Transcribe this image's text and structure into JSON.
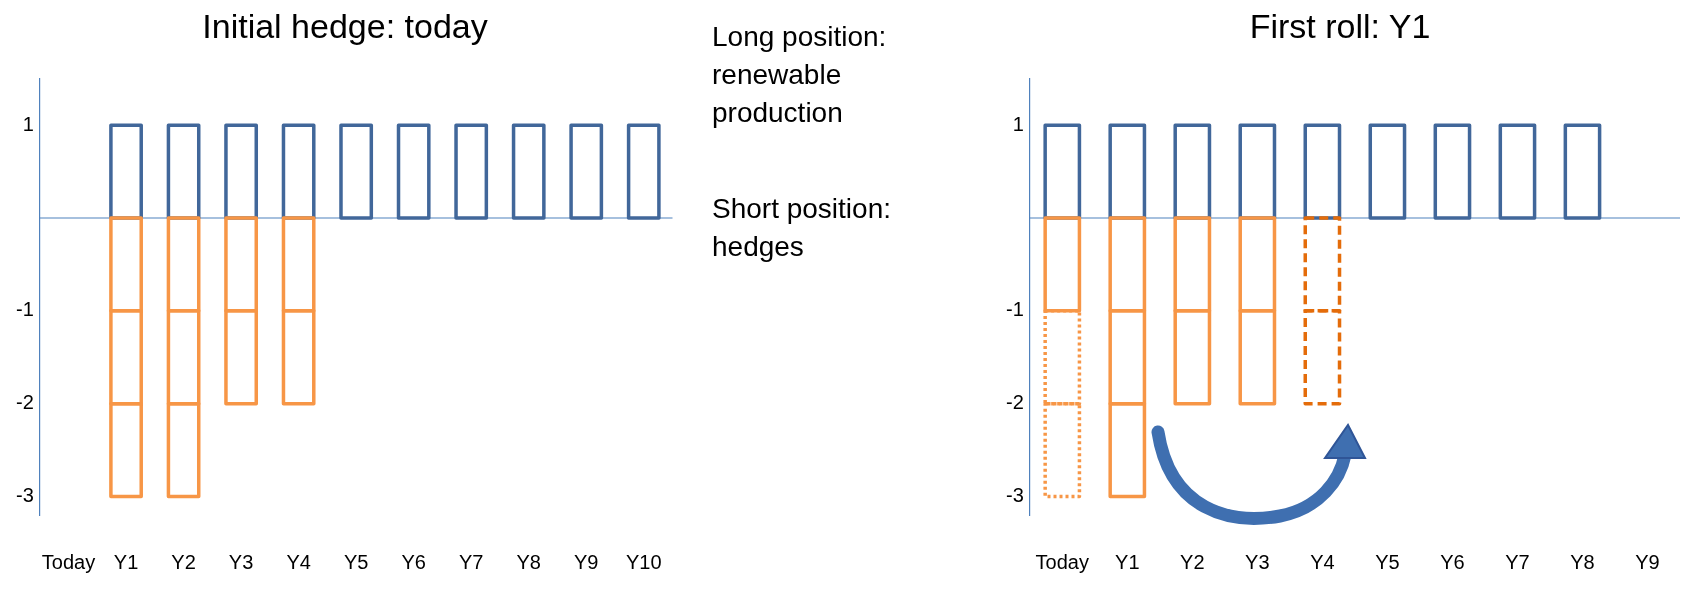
{
  "chart_data": [
    {
      "type": "bar",
      "title": "Initial hedge: today",
      "ref_lines": [
        {
          "axis": "y",
          "value": 0,
          "color": "#4f81bd"
        }
      ],
      "categories": [
        "Today",
        "Y1",
        "Y2",
        "Y3",
        "Y4",
        "Y5",
        "Y6",
        "Y7",
        "Y8",
        "Y9",
        "Y10"
      ],
      "stacked": true,
      "ylim": [
        -3.2,
        1.5
      ],
      "yticks": [
        -3,
        -2,
        -1,
        1
      ],
      "grid": false,
      "legend": false,
      "annotations": [
        "Long position: renewable production",
        "Short position: hedges"
      ],
      "series": [
        {
          "color": "#41679a",
          "values": [
            null,
            1,
            1,
            1,
            1,
            1,
            1,
            1,
            1,
            1,
            1
          ]
        },
        {
          "color": "#f79646",
          "values": [
            null,
            -1,
            -1,
            -1,
            -1,
            null,
            null,
            null,
            null,
            null,
            null
          ]
        },
        {
          "color": "#f79646",
          "values": [
            null,
            -1,
            -1,
            -1,
            -1,
            null,
            null,
            null,
            null,
            null,
            null
          ]
        },
        {
          "color": "#f79646",
          "values": [
            null,
            -1,
            -1,
            null,
            null,
            null,
            null,
            null,
            null,
            null,
            null
          ]
        }
      ]
    },
    {
      "type": "bar",
      "title": "First roll: Y1",
      "ref_lines": [
        {
          "axis": "y",
          "value": 0,
          "color": "#4f81bd"
        }
      ],
      "categories": [
        "Today",
        "Y1",
        "Y2",
        "Y3",
        "Y4",
        "Y5",
        "Y6",
        "Y7",
        "Y8",
        "Y9"
      ],
      "stacked": true,
      "ylim": [
        -3.2,
        1.5
      ],
      "yticks": [
        -3,
        -2,
        -1,
        1
      ],
      "grid": false,
      "legend": false,
      "series": [
        {
          "color": "#41679a",
          "values": [
            1,
            1,
            1,
            1,
            1,
            1,
            1,
            1,
            1,
            null
          ]
        },
        {
          "color": "#f79646",
          "values": [
            -1,
            -1,
            -1,
            -1,
            null,
            null,
            null,
            null,
            null,
            null
          ]
        },
        {
          "color": "#e46c0a",
          "line_style": "dashed",
          "values": [
            null,
            null,
            null,
            null,
            -1,
            null,
            null,
            null,
            null,
            null
          ]
        },
        {
          "color": "#f79646",
          "values": [
            null,
            -1,
            -1,
            -1,
            null,
            null,
            null,
            null,
            null,
            null
          ]
        },
        {
          "color": "#f79646",
          "line_style": "dotted",
          "values": [
            -1,
            null,
            null,
            null,
            null,
            null,
            null,
            null,
            null,
            null
          ]
        },
        {
          "color": "#e46c0a",
          "line_style": "dashed",
          "values": [
            null,
            null,
            null,
            null,
            -1,
            null,
            null,
            null,
            null,
            null
          ]
        },
        {
          "color": "#f79646",
          "values": [
            null,
            -1,
            null,
            null,
            null,
            null,
            null,
            null,
            null,
            null
          ]
        },
        {
          "color": "#f79646",
          "line_style": "dotted",
          "values": [
            -1,
            null,
            null,
            null,
            null,
            null,
            null,
            null,
            null,
            null
          ]
        }
      ]
    }
  ]
}
